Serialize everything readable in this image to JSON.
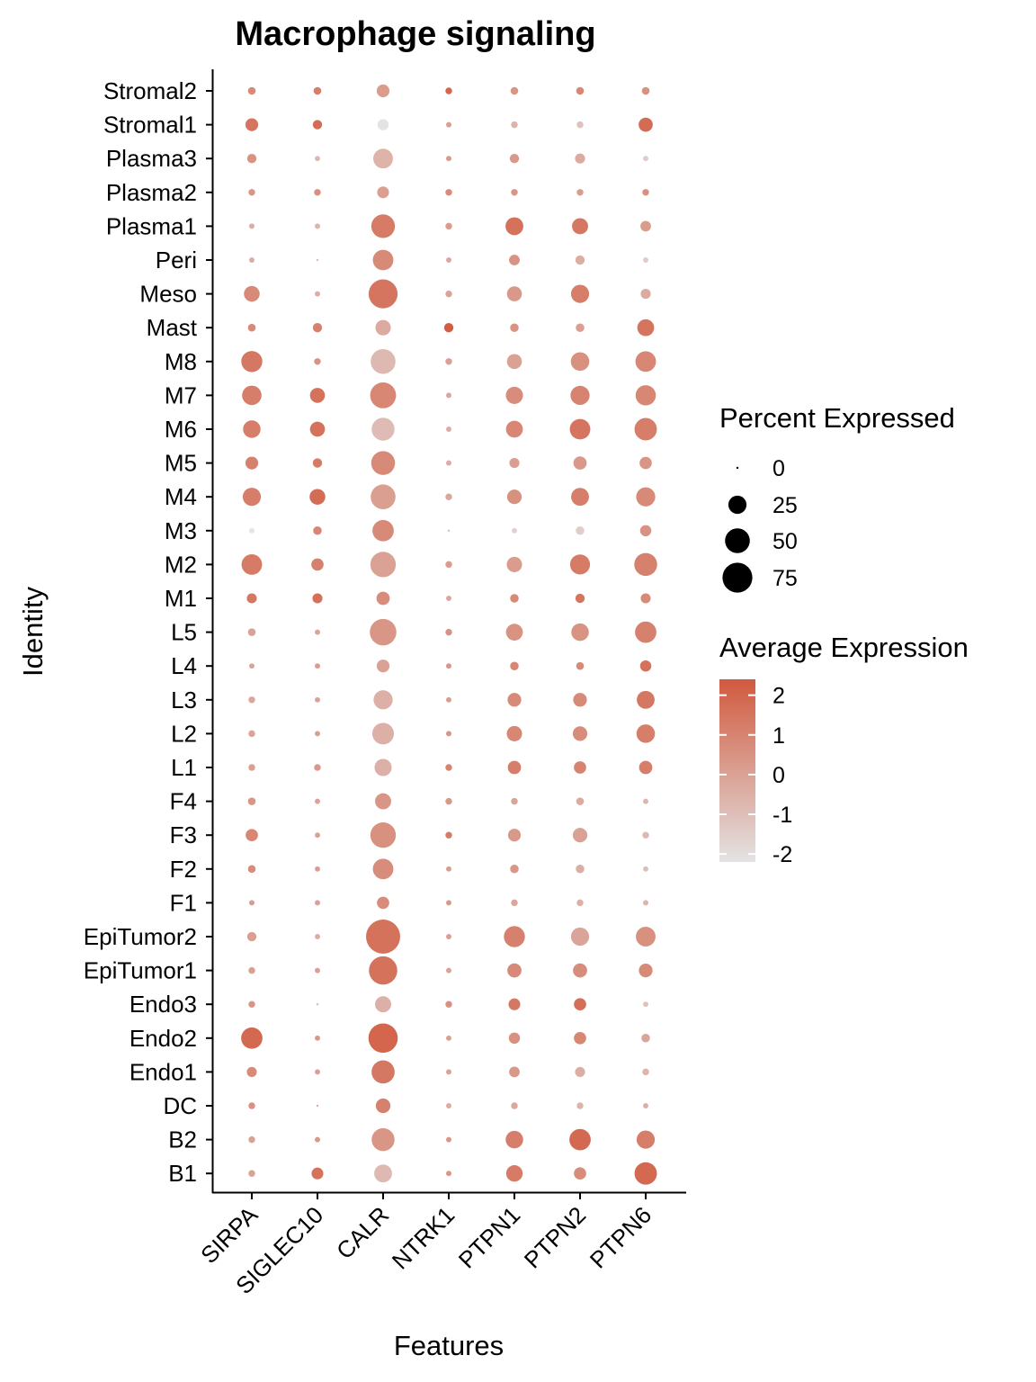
{
  "chart_data": {
    "type": "scatter",
    "title": "Macrophage signaling",
    "xlabel": "Features",
    "ylabel": "Identity",
    "features": [
      "SIRPA",
      "SIGLEC10",
      "CALR",
      "NTRK1",
      "PTPN1",
      "PTPN2",
      "PTPN6"
    ],
    "identities": [
      "Stromal2",
      "Stromal1",
      "Plasma3",
      "Plasma2",
      "Plasma1",
      "Peri",
      "Meso",
      "Mast",
      "M8",
      "M7",
      "M6",
      "M5",
      "M4",
      "M3",
      "M2",
      "M1",
      "L5",
      "L4",
      "L3",
      "L2",
      "L1",
      "F4",
      "F3",
      "F2",
      "F1",
      "EpiTumor2",
      "EpiTumor1",
      "Endo3",
      "Endo2",
      "Endo1",
      "DC",
      "B2",
      "B1"
    ],
    "value_note": "pct = percent of cells expressing (dot size); avg = scaled average expression (dot color)",
    "pct": [
      [
        3,
        3,
        11,
        2,
        3,
        3,
        3
      ],
      [
        11,
        5,
        8,
        1,
        2,
        2,
        14
      ],
      [
        5,
        1,
        30,
        1,
        5,
        6,
        1
      ],
      [
        2,
        2,
        9,
        2,
        2,
        2,
        2
      ],
      [
        1,
        1,
        45,
        2,
        24,
        19,
        7
      ],
      [
        1,
        0,
        33,
        1,
        7,
        5,
        1
      ],
      [
        18,
        1,
        70,
        2,
        16,
        25,
        6
      ],
      [
        3,
        5,
        17,
        5,
        4,
        4,
        21
      ],
      [
        35,
        2,
        50,
        2,
        16,
        26,
        33
      ],
      [
        29,
        16,
        55,
        1,
        22,
        28,
        32
      ],
      [
        23,
        16,
        42,
        1,
        21,
        33,
        40
      ],
      [
        11,
        5,
        46,
        1,
        6,
        12,
        10
      ],
      [
        25,
        18,
        50,
        2,
        15,
        24,
        28
      ],
      [
        1,
        4,
        36,
        0,
        1,
        4,
        8
      ],
      [
        33,
        10,
        53,
        2,
        17,
        31,
        42
      ],
      [
        6,
        6,
        12,
        1,
        4,
        5,
        6
      ],
      [
        3,
        1,
        58,
        2,
        21,
        23,
        36
      ],
      [
        1,
        1,
        11,
        1,
        4,
        3,
        8
      ],
      [
        2,
        1,
        28,
        1,
        13,
        13,
        24
      ],
      [
        2,
        1,
        37,
        1,
        17,
        15,
        26
      ],
      [
        2,
        2,
        22,
        2,
        12,
        10,
        12
      ],
      [
        3,
        1,
        19,
        2,
        2,
        3,
        1
      ],
      [
        10,
        1,
        53,
        2,
        11,
        15,
        2
      ],
      [
        3,
        1,
        33,
        1,
        4,
        4,
        1
      ],
      [
        1,
        1,
        10,
        1,
        2,
        2,
        1
      ],
      [
        5,
        1,
        100,
        1,
        35,
        25,
        30
      ],
      [
        2,
        1,
        67,
        1,
        14,
        14,
        13
      ],
      [
        2,
        0,
        19,
        2,
        9,
        10,
        1
      ],
      [
        36,
        1,
        72,
        1,
        8,
        10,
        4
      ],
      [
        6,
        1,
        43,
        1,
        7,
        6,
        2
      ],
      [
        2,
        0,
        15,
        1,
        2,
        2,
        1
      ],
      [
        2,
        1,
        42,
        1,
        23,
        36,
        25
      ],
      [
        2,
        9,
        24,
        1,
        20,
        10,
        40
      ]
    ],
    "avg": [
      [
        0.8,
        1.2,
        0.2,
        2.0,
        0.4,
        0.9,
        0.6
      ],
      [
        1.5,
        1.8,
        -2.2,
        0.1,
        -0.6,
        -1.1,
        1.8
      ],
      [
        0.5,
        -0.8,
        -0.6,
        0.3,
        0.3,
        -0.3,
        -1.4
      ],
      [
        0.4,
        0.6,
        0.1,
        0.7,
        0.4,
        0.2,
        0.6
      ],
      [
        -0.4,
        -0.6,
        1.3,
        0.2,
        1.6,
        1.4,
        0.2
      ],
      [
        -0.4,
        -0.8,
        0.8,
        -0.2,
        0.5,
        -0.4,
        -1.4
      ],
      [
        0.8,
        -0.4,
        1.5,
        -0.1,
        0.3,
        1.2,
        -0.3
      ],
      [
        0.8,
        1.1,
        -0.3,
        2.3,
        0.5,
        0.1,
        1.5
      ],
      [
        1.4,
        0.5,
        -0.8,
        0.0,
        0.0,
        0.6,
        0.9
      ],
      [
        1.2,
        1.6,
        0.9,
        -0.2,
        0.7,
        1.0,
        0.9
      ],
      [
        1.2,
        1.6,
        -0.9,
        -0.4,
        0.9,
        1.5,
        1.2
      ],
      [
        1.1,
        1.3,
        0.8,
        -0.4,
        0.1,
        0.3,
        0.4
      ],
      [
        1.2,
        1.8,
        0.1,
        -0.2,
        0.6,
        1.2,
        0.8
      ],
      [
        -2.2,
        0.9,
        0.8,
        -0.8,
        -1.6,
        -1.5,
        0.5
      ],
      [
        1.3,
        1.1,
        0.0,
        0.2,
        0.2,
        1.3,
        1.1
      ],
      [
        1.4,
        1.7,
        0.7,
        -0.2,
        0.8,
        1.5,
        0.8
      ],
      [
        0.0,
        -0.1,
        0.4,
        0.5,
        0.5,
        0.5,
        1.1
      ],
      [
        -0.1,
        0.2,
        0.0,
        0.4,
        0.9,
        0.8,
        1.6
      ],
      [
        -0.2,
        0.0,
        -0.5,
        0.2,
        0.8,
        0.8,
        1.4
      ],
      [
        -0.1,
        0.1,
        -0.5,
        0.4,
        0.9,
        0.7,
        1.2
      ],
      [
        0.1,
        0.3,
        -0.5,
        1.0,
        1.2,
        1.0,
        1.2
      ],
      [
        0.4,
        -0.1,
        0.4,
        0.3,
        -0.1,
        -0.3,
        -0.7
      ],
      [
        0.9,
        0.0,
        0.6,
        1.3,
        0.3,
        0.0,
        -0.8
      ],
      [
        0.7,
        0.1,
        0.7,
        0.2,
        0.4,
        -0.4,
        -1.0
      ],
      [
        0.2,
        0.0,
        0.7,
        0.3,
        -0.2,
        -0.5,
        -0.6
      ],
      [
        0.1,
        -0.4,
        1.6,
        0.1,
        1.1,
        -0.1,
        0.6
      ],
      [
        0.1,
        0.0,
        1.6,
        0.0,
        0.8,
        0.7,
        0.8
      ],
      [
        0.4,
        -0.7,
        -0.5,
        0.6,
        1.4,
        1.7,
        -1.1
      ],
      [
        1.9,
        0.3,
        2.0,
        0.1,
        0.6,
        0.9,
        -0.1
      ],
      [
        0.8,
        0.0,
        1.4,
        0.0,
        0.3,
        -0.4,
        -0.6
      ],
      [
        0.6,
        -0.4,
        1.1,
        -0.3,
        -0.2,
        -0.6,
        -0.5
      ],
      [
        0.0,
        0.3,
        0.4,
        0.3,
        1.2,
        1.9,
        1.2
      ],
      [
        0.0,
        1.6,
        -0.8,
        0.4,
        1.3,
        0.7,
        1.9
      ]
    ],
    "size_range_pct": [
      0,
      100
    ],
    "color_range": [
      -2.2,
      2.4
    ],
    "color_low": "#e3e3e3",
    "color_high": "#d15a3f",
    "legend_size_title": "Percent Expressed",
    "legend_size_values": [
      0,
      25,
      50,
      75
    ],
    "legend_size_labels": [
      "0",
      "25",
      "50",
      "75"
    ],
    "legend_color_title": "Average Expression",
    "legend_color_ticks": [
      2,
      1,
      0,
      -1,
      -2
    ],
    "legend_color_labels": [
      "2",
      "1",
      "0",
      "-1",
      "-2"
    ],
    "legend_position": "right"
  }
}
